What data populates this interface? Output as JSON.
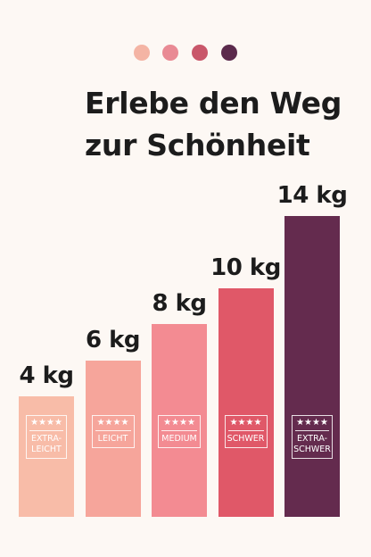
{
  "header": {
    "title_line1": "Erlebe den Weg",
    "title_line2": "zur Schönheit",
    "dot_colors": [
      "#f4b4a4",
      "#e98a94",
      "#c9576a",
      "#5b2a4c"
    ]
  },
  "chart_data": {
    "type": "bar",
    "unit": "kg",
    "categories": [
      "EXTRA-\nLEICHT",
      "LEICHT",
      "MEDIUM",
      "SCHWER",
      "EXTRA-\nSCHWER"
    ],
    "values": [
      4,
      6,
      8,
      10,
      14
    ],
    "value_labels": [
      "4 kg",
      "6 kg",
      "8 kg",
      "10 kg",
      "14 kg"
    ],
    "badge_stars": "★★★★",
    "colors": [
      "#f8bca8",
      "#f6a59b",
      "#f38b92",
      "#e05868",
      "#642b4e"
    ],
    "ylim": [
      0,
      14
    ],
    "grid": false,
    "legend": "none"
  }
}
